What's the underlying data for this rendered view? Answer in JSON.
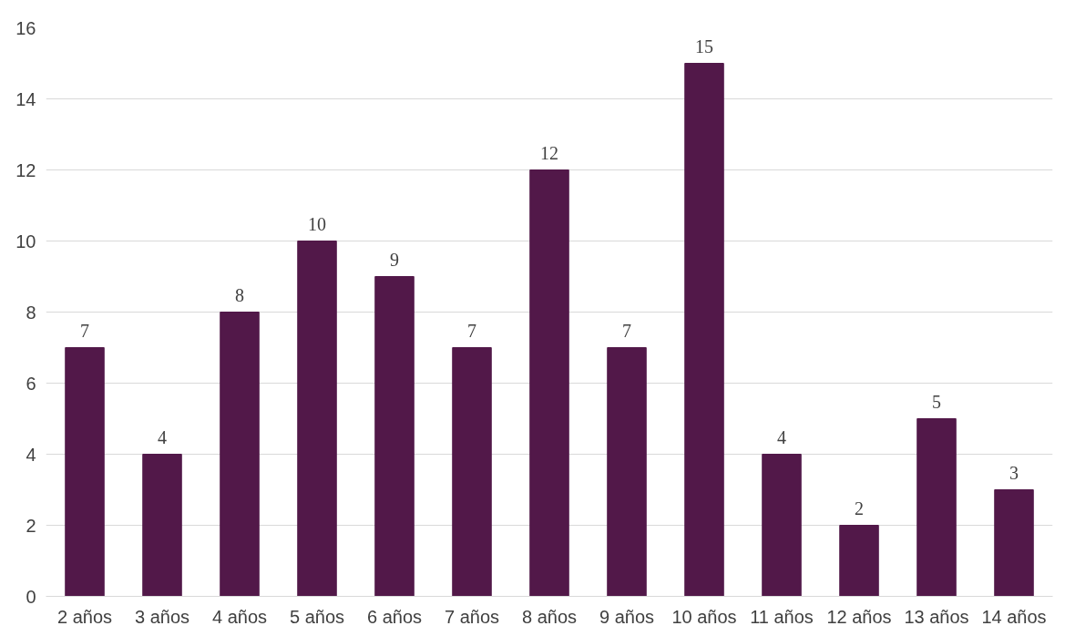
{
  "chart_data": {
    "type": "bar",
    "categories": [
      "2 años",
      "3 años",
      "4 años",
      "5 años",
      "6 años",
      "7 años",
      "8 años",
      "9 años",
      "10 años",
      "11 años",
      "12 años",
      "13 años",
      "14 años"
    ],
    "values": [
      7,
      4,
      8,
      10,
      9,
      7,
      12,
      7,
      15,
      4,
      2,
      5,
      3
    ],
    "color": "#521849",
    "ylim": [
      0,
      16
    ],
    "yticks": [
      0,
      2,
      4,
      6,
      8,
      10,
      12,
      14,
      16
    ],
    "grid": "y",
    "data_labels": true
  }
}
